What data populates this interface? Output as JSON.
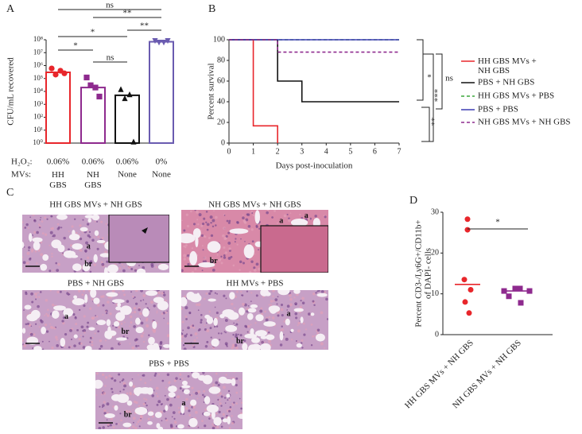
{
  "panels": [
    "A",
    "B",
    "C",
    "D"
  ],
  "chart_data": [
    {
      "type": "bar-dot",
      "ylabel": "CFU/mL recovered",
      "log_scale": true,
      "ylim": [
        1,
        100000000
      ],
      "yticks": [
        {
          "value": 1,
          "label": "10⁰"
        },
        {
          "value": 10,
          "label": "10¹"
        },
        {
          "value": 100,
          "label": "10²"
        },
        {
          "value": 1000,
          "label": "10³"
        },
        {
          "value": 10000,
          "label": "10⁴"
        },
        {
          "value": 100000,
          "label": "10⁵"
        },
        {
          "value": 1000000,
          "label": "10⁶"
        },
        {
          "value": 10000000,
          "label": "10⁷"
        },
        {
          "value": 100000000,
          "label": "10⁸"
        }
      ],
      "row_labels": [
        "H₂O₂:",
        "MVs:"
      ],
      "h2o2": [
        "0.06%",
        "0.06%",
        "0.06%",
        "0%"
      ],
      "categories": [
        "HH GBS",
        "NH GBS",
        "None",
        "None"
      ],
      "colors": [
        "#e8262b",
        "#8e2a8e",
        "#111111",
        "#6a5bb0"
      ],
      "markers": [
        "circle",
        "square",
        "triangle",
        "triangle-down"
      ],
      "values": [
        300000,
        20000,
        5000,
        70000000
      ],
      "points": [
        [
          600000,
          200000,
          400000,
          250000
        ],
        [
          120000,
          30000,
          20000,
          4000
        ],
        [
          15000,
          3000,
          6000,
          1.3
        ],
        [
          80000000,
          60000000,
          60000000,
          80000000
        ]
      ],
      "annotations": [
        "ns",
        "**",
        "*",
        "**",
        "*",
        "ns"
      ]
    },
    {
      "type": "line",
      "xlabel": "Days post-inoculation",
      "ylabel": "Percent survival",
      "xlim": [
        0,
        7
      ],
      "xticks": [
        0,
        1,
        2,
        3,
        4,
        5,
        6,
        7
      ],
      "ylim": [
        0,
        100
      ],
      "yticks": [
        0,
        20,
        40,
        60,
        80,
        100
      ],
      "legend": "right",
      "series": [
        {
          "name": "HH GBS MVs + NH GBS",
          "color": "#e8262b",
          "dashed": false,
          "x": [
            0,
            1,
            1,
            2,
            2
          ],
          "values": [
            100,
            100,
            16.7,
            16.7,
            0
          ]
        },
        {
          "name": "PBS + NH GBS",
          "color": "#111111",
          "dashed": false,
          "x": [
            0,
            2,
            2,
            3,
            3,
            7
          ],
          "values": [
            100,
            100,
            60,
            60,
            40,
            40
          ]
        },
        {
          "name": "HH GBS MVs + PBS",
          "color": "#3aa63a",
          "dashed": true,
          "x": [
            0,
            7
          ],
          "values": [
            100,
            100
          ]
        },
        {
          "name": "PBS + PBS",
          "color": "#3b3bb3",
          "dashed": false,
          "x": [
            0,
            7
          ],
          "values": [
            100,
            100
          ]
        },
        {
          "name": "NH GBS MVs + NH GBS",
          "color": "#8e2a8e",
          "dashed": true,
          "x": [
            0,
            2,
            2,
            7
          ],
          "values": [
            100,
            100,
            88,
            88
          ]
        }
      ],
      "annotations": [
        "*",
        "ns",
        "***",
        "**"
      ]
    },
    {
      "type": "dot",
      "ylabel": "Percent CD3-/Ly6G+/CD11b+",
      "ylabel2": "of DAPI- cells",
      "ylim": [
        0,
        30
      ],
      "yticks": [
        0,
        10,
        20,
        30
      ],
      "categories": [
        "HH GBS MVs + NH GBS",
        "NH GBS MVs + NH GBS"
      ],
      "colors": [
        "#e8262b",
        "#8e2a8e"
      ],
      "markers": [
        "circle",
        "square"
      ],
      "values": [
        [
          28.3,
          25.7,
          13.5,
          11,
          8,
          5.3
        ],
        [
          11.3,
          11.3,
          10.7,
          10.7,
          9.4,
          7.8
        ]
      ],
      "medians": [
        12.3,
        10.7
      ],
      "annotations": [
        "*"
      ]
    }
  ],
  "images": [
    {
      "caption": "HH GBS MVs + NH GBS",
      "labels": [
        "a",
        "br"
      ]
    },
    {
      "caption": "NH GBS MVs + NH GBS",
      "labels": [
        "a",
        "br",
        "a"
      ]
    },
    {
      "caption": "PBS + NH GBS",
      "labels": [
        "a",
        "br"
      ]
    },
    {
      "caption": "HH MVs + PBS",
      "labels": [
        "a",
        "br"
      ]
    },
    {
      "caption": "PBS + PBS",
      "labels": [
        "a",
        "br"
      ]
    }
  ]
}
